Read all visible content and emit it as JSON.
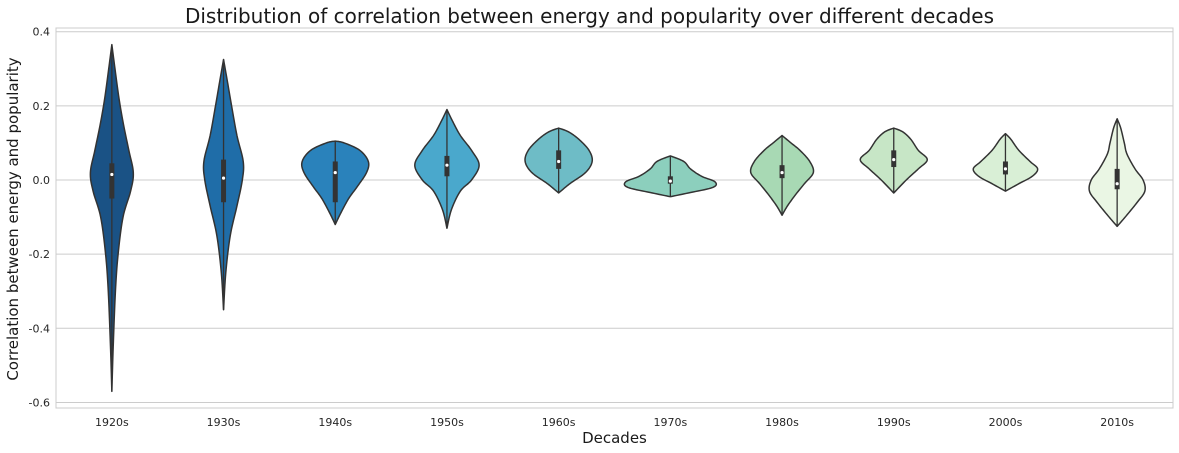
{
  "chart_data": {
    "type": "violin",
    "title": "Distribution of correlation between energy and popularity over different decades",
    "xlabel": "Decades",
    "ylabel": "Correlation between energy and popularity",
    "ylim": [
      -0.615,
      0.41
    ],
    "yticks": [
      0.4,
      0.2,
      0.0,
      -0.2,
      -0.4,
      -0.6
    ],
    "ytick_labels": [
      "0.4",
      "0.2",
      "0.0",
      "-0.2",
      "-0.4",
      "-0.6"
    ],
    "grid": true,
    "categories": [
      "1920s",
      "1930s",
      "1940s",
      "1950s",
      "1960s",
      "1970s",
      "1980s",
      "1990s",
      "2000s",
      "2010s"
    ],
    "violins": [
      {
        "category": "1920s",
        "color": "#1a5285",
        "min": -0.57,
        "max": 0.365,
        "q1": -0.05,
        "median": 0.015,
        "q3": 0.045,
        "profile": [
          [
            -0.57,
            0.0
          ],
          [
            -0.45,
            0.03
          ],
          [
            -0.3,
            0.08
          ],
          [
            -0.2,
            0.14
          ],
          [
            -0.1,
            0.25
          ],
          [
            -0.03,
            0.42
          ],
          [
            0.02,
            0.48
          ],
          [
            0.08,
            0.38
          ],
          [
            0.15,
            0.26
          ],
          [
            0.22,
            0.16
          ],
          [
            0.3,
            0.07
          ],
          [
            0.365,
            0.0
          ]
        ]
      },
      {
        "category": "1930s",
        "color": "#1f6da8",
        "min": -0.35,
        "max": 0.325,
        "q1": -0.06,
        "median": 0.005,
        "q3": 0.055,
        "profile": [
          [
            -0.35,
            0.0
          ],
          [
            -0.25,
            0.05
          ],
          [
            -0.15,
            0.15
          ],
          [
            -0.07,
            0.3
          ],
          [
            0.0,
            0.42
          ],
          [
            0.05,
            0.44
          ],
          [
            0.12,
            0.3
          ],
          [
            0.2,
            0.18
          ],
          [
            0.27,
            0.08
          ],
          [
            0.325,
            0.0
          ]
        ]
      },
      {
        "category": "1940s",
        "color": "#2a82bb",
        "min": -0.12,
        "max": 0.105,
        "q1": -0.06,
        "median": 0.02,
        "q3": 0.05,
        "profile": [
          [
            -0.12,
            0.0
          ],
          [
            -0.09,
            0.12
          ],
          [
            -0.05,
            0.3
          ],
          [
            -0.02,
            0.48
          ],
          [
            0.02,
            0.7
          ],
          [
            0.05,
            0.74
          ],
          [
            0.08,
            0.55
          ],
          [
            0.1,
            0.2
          ],
          [
            0.105,
            0.0
          ]
        ]
      },
      {
        "category": "1950s",
        "color": "#4aa8cc",
        "min": -0.13,
        "max": 0.19,
        "q1": 0.01,
        "median": 0.04,
        "q3": 0.065,
        "profile": [
          [
            -0.13,
            0.0
          ],
          [
            -0.08,
            0.1
          ],
          [
            -0.03,
            0.3
          ],
          [
            0.0,
            0.55
          ],
          [
            0.04,
            0.72
          ],
          [
            0.08,
            0.55
          ],
          [
            0.12,
            0.3
          ],
          [
            0.16,
            0.12
          ],
          [
            0.19,
            0.0
          ]
        ]
      },
      {
        "category": "1960s",
        "color": "#6ebcc6",
        "min": -0.035,
        "max": 0.14,
        "q1": 0.03,
        "median": 0.05,
        "q3": 0.08,
        "profile": [
          [
            -0.035,
            0.0
          ],
          [
            -0.01,
            0.25
          ],
          [
            0.02,
            0.6
          ],
          [
            0.05,
            0.75
          ],
          [
            0.08,
            0.68
          ],
          [
            0.11,
            0.45
          ],
          [
            0.13,
            0.22
          ],
          [
            0.14,
            0.0
          ]
        ]
      },
      {
        "category": "1970s",
        "color": "#8ccfbd",
        "min": -0.045,
        "max": 0.065,
        "q1": -0.01,
        "median": -0.003,
        "q3": 0.01,
        "profile": [
          [
            -0.045,
            0.0
          ],
          [
            -0.035,
            0.4
          ],
          [
            -0.02,
            0.95
          ],
          [
            -0.005,
            1.0
          ],
          [
            0.01,
            0.7
          ],
          [
            0.03,
            0.45
          ],
          [
            0.05,
            0.3
          ],
          [
            0.065,
            0.0
          ]
        ]
      },
      {
        "category": "1980s",
        "color": "#a8d9b4",
        "min": -0.095,
        "max": 0.12,
        "q1": 0.005,
        "median": 0.02,
        "q3": 0.04,
        "profile": [
          [
            -0.095,
            0.0
          ],
          [
            -0.07,
            0.12
          ],
          [
            -0.04,
            0.3
          ],
          [
            -0.01,
            0.5
          ],
          [
            0.02,
            0.7
          ],
          [
            0.05,
            0.62
          ],
          [
            0.08,
            0.4
          ],
          [
            0.1,
            0.2
          ],
          [
            0.12,
            0.0
          ]
        ]
      },
      {
        "category": "1990s",
        "color": "#c7e6c6",
        "min": -0.035,
        "max": 0.14,
        "q1": 0.035,
        "median": 0.055,
        "q3": 0.08,
        "profile": [
          [
            -0.035,
            0.0
          ],
          [
            0.0,
            0.28
          ],
          [
            0.03,
            0.55
          ],
          [
            0.055,
            0.75
          ],
          [
            0.08,
            0.55
          ],
          [
            0.11,
            0.38
          ],
          [
            0.13,
            0.2
          ],
          [
            0.14,
            0.0
          ]
        ]
      },
      {
        "category": "2000s",
        "color": "#d9efd6",
        "min": -0.03,
        "max": 0.125,
        "q1": 0.015,
        "median": 0.03,
        "q3": 0.05,
        "profile": [
          [
            -0.03,
            0.0
          ],
          [
            -0.01,
            0.3
          ],
          [
            0.01,
            0.6
          ],
          [
            0.03,
            0.72
          ],
          [
            0.05,
            0.55
          ],
          [
            0.08,
            0.3
          ],
          [
            0.11,
            0.12
          ],
          [
            0.125,
            0.0
          ]
        ]
      },
      {
        "category": "2010s",
        "color": "#eaf6e4",
        "min": -0.125,
        "max": 0.165,
        "q1": -0.025,
        "median": -0.01,
        "q3": 0.03,
        "profile": [
          [
            -0.125,
            0.0
          ],
          [
            -0.1,
            0.18
          ],
          [
            -0.06,
            0.45
          ],
          [
            -0.03,
            0.62
          ],
          [
            0.0,
            0.58
          ],
          [
            0.03,
            0.4
          ],
          [
            0.07,
            0.22
          ],
          [
            0.1,
            0.16
          ],
          [
            0.14,
            0.08
          ],
          [
            0.165,
            0.0
          ]
        ]
      }
    ]
  }
}
